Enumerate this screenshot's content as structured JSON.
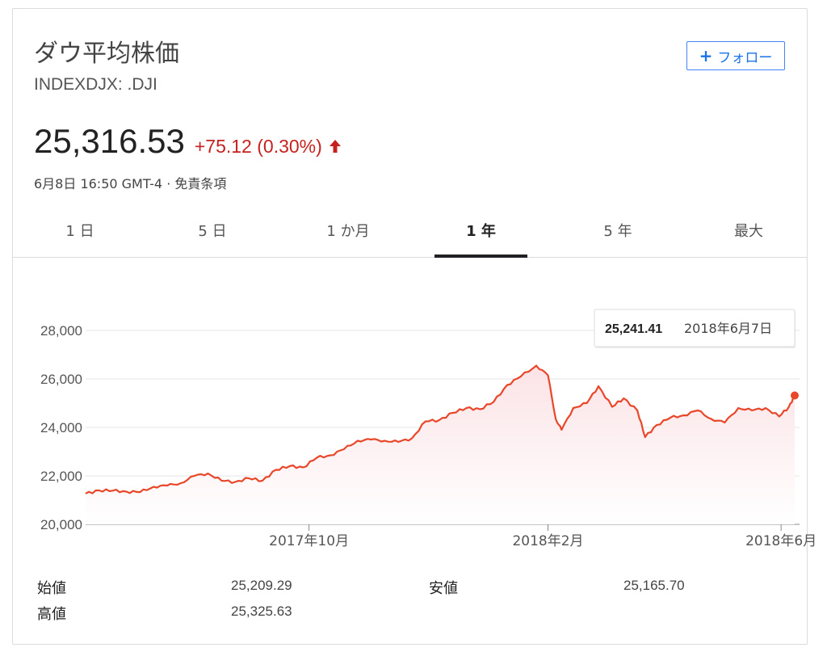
{
  "header": {
    "title": "ダウ平均株価",
    "ticker": "INDEXDJX: .DJI",
    "follow_label": "フォロー"
  },
  "quote": {
    "price": "25,316.53",
    "change": "+75.12 (0.30%)",
    "timestamp": "6月8日 16:50 GMT-4 · 免責条項"
  },
  "tabs": [
    "1 日",
    "5 日",
    "1 か月",
    "1 年",
    "5 年",
    "最大"
  ],
  "active_tab": 3,
  "tooltip": {
    "value": "25,241.41",
    "date": "2018年6月7日"
  },
  "stats": {
    "open_label": "始値",
    "open_value": "25,209.29",
    "high_label": "高値",
    "high_value": "25,325.63",
    "low_label": "安値",
    "low_value": "25,165.70"
  },
  "colors": {
    "line": "#e8472a",
    "fill": "#fbe3e6",
    "negative": "#c5221f",
    "accent": "#1a73e8"
  },
  "icons": {
    "change_arrow": "arrow-up-icon",
    "follow": "plus-icon"
  },
  "chart_data": {
    "type": "area",
    "ylim": [
      20000,
      28000
    ],
    "yticks": [
      20000,
      22000,
      24000,
      26000,
      28000
    ],
    "ytick_labels": [
      "20,000",
      "22,000",
      "24,000",
      "26,000",
      "28,000"
    ],
    "xlim": [
      "2017-06-08",
      "2018-06-08"
    ],
    "xticks": [
      {
        "date": "2017-10-01",
        "label": "2017年10月"
      },
      {
        "date": "2018-02-01",
        "label": "2018年2月"
      },
      {
        "date": "2018-06-01",
        "label": "2018年6月"
      }
    ],
    "x": [
      "2017-06-08",
      "2017-06-15",
      "2017-06-22",
      "2017-06-29",
      "2017-07-06",
      "2017-07-13",
      "2017-07-20",
      "2017-07-27",
      "2017-08-03",
      "2017-08-10",
      "2017-08-17",
      "2017-08-24",
      "2017-08-31",
      "2017-09-07",
      "2017-09-14",
      "2017-09-21",
      "2017-09-28",
      "2017-10-05",
      "2017-10-12",
      "2017-10-19",
      "2017-10-26",
      "2017-11-02",
      "2017-11-09",
      "2017-11-16",
      "2017-11-23",
      "2017-11-30",
      "2017-12-07",
      "2017-12-14",
      "2017-12-21",
      "2017-12-28",
      "2018-01-04",
      "2018-01-11",
      "2018-01-18",
      "2018-01-26",
      "2018-02-01",
      "2018-02-05",
      "2018-02-08",
      "2018-02-14",
      "2018-02-21",
      "2018-02-27",
      "2018-03-06",
      "2018-03-12",
      "2018-03-19",
      "2018-03-23",
      "2018-03-29",
      "2018-04-05",
      "2018-04-12",
      "2018-04-19",
      "2018-04-26",
      "2018-05-03",
      "2018-05-10",
      "2018-05-17",
      "2018-05-24",
      "2018-05-31",
      "2018-06-05",
      "2018-06-08"
    ],
    "values": [
      21270,
      21400,
      21390,
      21350,
      21330,
      21550,
      21600,
      21700,
      22000,
      22100,
      21800,
      21750,
      21900,
      21800,
      22250,
      22400,
      22350,
      22750,
      22850,
      23100,
      23450,
      23500,
      23450,
      23400,
      23550,
      24250,
      24300,
      24600,
      24800,
      24750,
      25050,
      25750,
      26100,
      26550,
      26150,
      24350,
      23900,
      24800,
      25000,
      25700,
      24850,
      25200,
      24700,
      23600,
      24100,
      24400,
      24500,
      24700,
      24350,
      24200,
      24800,
      24700,
      24800,
      24450,
      24850,
      25316.53
    ]
  }
}
